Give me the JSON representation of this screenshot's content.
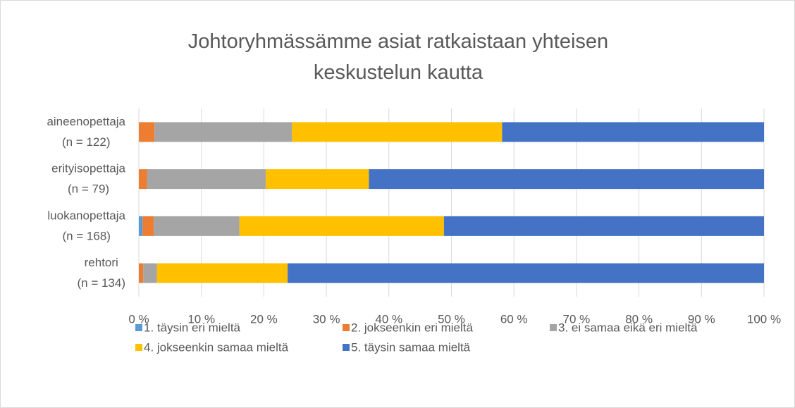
{
  "chart_data": {
    "type": "stacked-barh",
    "title": "Johtoryhmässämme asiat ratkaistaan yhteisen keskustelun kautta",
    "categories": [
      [
        "aineenopettaja",
        "(n = 122)"
      ],
      [
        "erityisopettaja",
        "(n = 79)"
      ],
      [
        "luokanopettaja",
        "(n = 168)"
      ],
      [
        "rehtori",
        "(n = 134)"
      ]
    ],
    "series": [
      {
        "name": "1. täysin eri mieltä",
        "color": "#5b9bd5",
        "values": [
          0,
          0,
          0.6,
          0
        ]
      },
      {
        "name": "2. jokseenkin eri mieltä",
        "color": "#ed7d31",
        "values": [
          2.5,
          1.3,
          1.8,
          0.7
        ]
      },
      {
        "name": "3. ei samaa eikä eri mieltä",
        "color": "#a5a5a5",
        "values": [
          22.0,
          19.0,
          13.7,
          2.2
        ]
      },
      {
        "name": "4. jokseenkin samaa mieltä",
        "color": "#ffc000",
        "values": [
          33.6,
          16.5,
          32.7,
          20.9
        ]
      },
      {
        "name": "5. täysin samaa mieltä",
        "color": "#4472c4",
        "values": [
          41.9,
          63.2,
          51.2,
          76.2
        ]
      }
    ],
    "xlim": [
      0,
      100
    ],
    "xticks": [
      {
        "value": 0,
        "label": "0 %"
      },
      {
        "value": 10,
        "label": "10 %"
      },
      {
        "value": 20,
        "label": "20 %"
      },
      {
        "value": 30,
        "label": "30 %"
      },
      {
        "value": 40,
        "label": "40 %"
      },
      {
        "value": 50,
        "label": "50 %"
      },
      {
        "value": 60,
        "label": "60 %"
      },
      {
        "value": 70,
        "label": "70 %"
      },
      {
        "value": 80,
        "label": "80 %"
      },
      {
        "value": 90,
        "label": "90 %"
      },
      {
        "value": 100,
        "label": "100 %"
      }
    ],
    "grid": true,
    "legend": "bottom"
  }
}
